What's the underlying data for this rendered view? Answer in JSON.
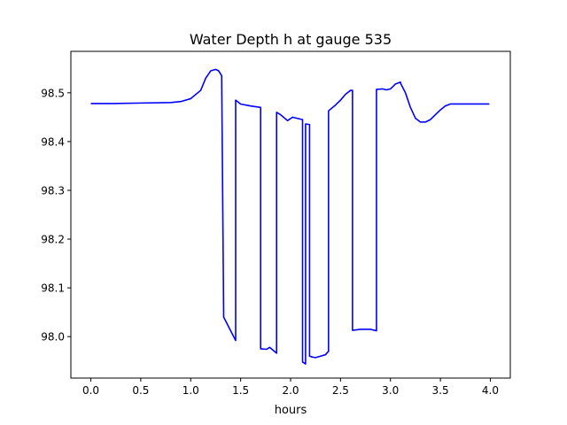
{
  "chart_data": {
    "type": "line",
    "title": "Water Depth h at gauge 535",
    "xlabel": "hours",
    "ylabel": "",
    "xlim": [
      -0.2,
      4.2
    ],
    "ylim": [
      97.915,
      98.585
    ],
    "xticks": [
      0.0,
      0.5,
      1.0,
      1.5,
      2.0,
      2.5,
      3.0,
      3.5,
      4.0
    ],
    "xtick_labels": [
      "0.0",
      "0.5",
      "1.0",
      "1.5",
      "2.0",
      "2.5",
      "3.0",
      "3.5",
      "4.0"
    ],
    "yticks": [
      98.0,
      98.1,
      98.2,
      98.3,
      98.4,
      98.5
    ],
    "ytick_labels": [
      "98.0",
      "98.1",
      "98.2",
      "98.3",
      "98.4",
      "98.5"
    ],
    "grid": false,
    "legend": "none",
    "series": [
      {
        "color": "#0000ff",
        "x": [
          0.0,
          0.2,
          0.5,
          0.8,
          0.9,
          1.0,
          1.1,
          1.15,
          1.2,
          1.25,
          1.28,
          1.31,
          1.33,
          1.33,
          1.45,
          1.45,
          1.5,
          1.6,
          1.7,
          1.7,
          1.76,
          1.79,
          1.86,
          1.86,
          1.9,
          1.97,
          2.02,
          2.08,
          2.12,
          2.12,
          2.15,
          2.15,
          2.19,
          2.19,
          2.22,
          2.25,
          2.3,
          2.35,
          2.38,
          2.38,
          2.45,
          2.5,
          2.55,
          2.6,
          2.62,
          2.62,
          2.7,
          2.8,
          2.86,
          2.86,
          2.92,
          2.96,
          3.0,
          3.05,
          3.1,
          3.1,
          3.15,
          3.2,
          3.25,
          3.3,
          3.35,
          3.4,
          3.45,
          3.5,
          3.55,
          3.6,
          3.65,
          3.7,
          3.75,
          3.8,
          3.85,
          3.9,
          3.95,
          3.99
        ],
        "y": [
          98.478,
          98.478,
          98.479,
          98.48,
          98.482,
          98.488,
          98.505,
          98.53,
          98.545,
          98.548,
          98.545,
          98.535,
          98.04,
          98.04,
          97.992,
          98.485,
          98.477,
          98.473,
          98.47,
          97.975,
          97.974,
          97.978,
          97.966,
          98.46,
          98.455,
          98.443,
          98.45,
          98.447,
          98.445,
          97.948,
          97.944,
          98.436,
          98.435,
          97.96,
          97.958,
          97.957,
          97.96,
          97.963,
          97.97,
          98.463,
          98.475,
          98.485,
          98.497,
          98.505,
          98.505,
          98.013,
          98.015,
          98.015,
          98.012,
          98.507,
          98.508,
          98.506,
          98.508,
          98.518,
          98.522,
          98.52,
          98.5,
          98.47,
          98.448,
          98.44,
          98.44,
          98.445,
          98.455,
          98.465,
          98.473,
          98.477,
          98.477,
          98.477,
          98.477,
          98.477,
          98.477,
          98.477,
          98.477,
          98.477
        ]
      }
    ]
  }
}
